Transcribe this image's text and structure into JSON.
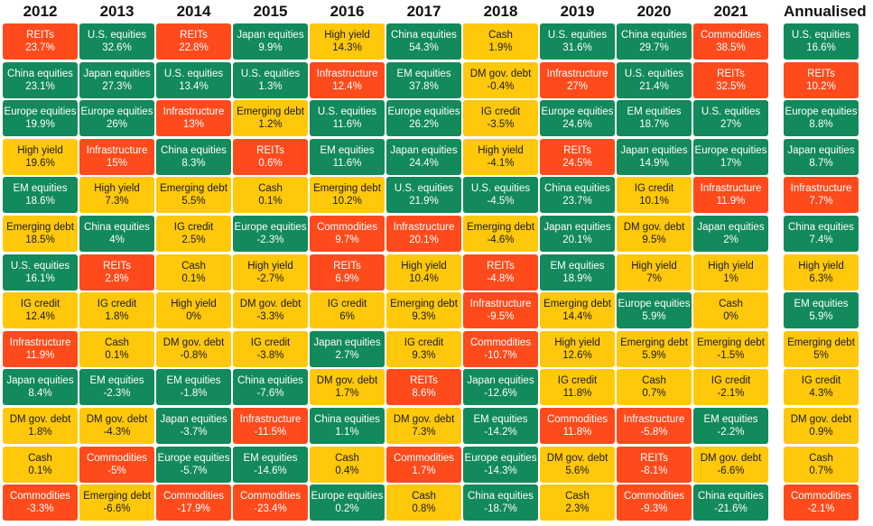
{
  "chart_data": {
    "type": "table",
    "columns": [
      "2012",
      "2013",
      "2014",
      "2015",
      "2016",
      "2017",
      "2018",
      "2019",
      "2020",
      "2021",
      "Annualised"
    ],
    "colors": {
      "green": "#128a5b",
      "yellow": "#ffc80a",
      "red": "#ff4a1c"
    },
    "rows_per_column": 13,
    "cells": [
      [
        {
          "asset": "REITs",
          "value": "23.7%",
          "color": "red"
        },
        {
          "asset": "China equities",
          "value": "23.1%",
          "color": "green"
        },
        {
          "asset": "Europe equities",
          "value": "19.9%",
          "color": "green"
        },
        {
          "asset": "High yield",
          "value": "19.6%",
          "color": "yellow"
        },
        {
          "asset": "EM equities",
          "value": "18.6%",
          "color": "green"
        },
        {
          "asset": "Emerging debt",
          "value": "18.5%",
          "color": "yellow"
        },
        {
          "asset": "U.S. equities",
          "value": "16.1%",
          "color": "green"
        },
        {
          "asset": "IG credit",
          "value": "12.4%",
          "color": "yellow"
        },
        {
          "asset": "Infrastructure",
          "value": "11.9%",
          "color": "red"
        },
        {
          "asset": "Japan equities",
          "value": "8.4%",
          "color": "green"
        },
        {
          "asset": "DM gov. debt",
          "value": "1.8%",
          "color": "yellow"
        },
        {
          "asset": "Cash",
          "value": "0.1%",
          "color": "yellow"
        },
        {
          "asset": "Commodities",
          "value": "-3.3%",
          "color": "red"
        }
      ],
      [
        {
          "asset": "U.S. equities",
          "value": "32.6%",
          "color": "green"
        },
        {
          "asset": "Japan equities",
          "value": "27.3%",
          "color": "green"
        },
        {
          "asset": "Europe equities",
          "value": "26%",
          "color": "green"
        },
        {
          "asset": "Infrastructure",
          "value": "15%",
          "color": "red"
        },
        {
          "asset": "High yield",
          "value": "7.3%",
          "color": "yellow"
        },
        {
          "asset": "China equities",
          "value": "4%",
          "color": "green"
        },
        {
          "asset": "REITs",
          "value": "2.8%",
          "color": "red"
        },
        {
          "asset": "IG credit",
          "value": "1.8%",
          "color": "yellow"
        },
        {
          "asset": "Cash",
          "value": "0.1%",
          "color": "yellow"
        },
        {
          "asset": "EM equities",
          "value": "-2.3%",
          "color": "green"
        },
        {
          "asset": "DM gov. debt",
          "value": "-4.3%",
          "color": "yellow"
        },
        {
          "asset": "Commodities",
          "value": "-5%",
          "color": "red"
        },
        {
          "asset": "Emerging debt",
          "value": "-6.6%",
          "color": "yellow"
        }
      ],
      [
        {
          "asset": "REITs",
          "value": "22.8%",
          "color": "red"
        },
        {
          "asset": "U.S. equities",
          "value": "13.4%",
          "color": "green"
        },
        {
          "asset": "Infrastructure",
          "value": "13%",
          "color": "red"
        },
        {
          "asset": "China equities",
          "value": "8.3%",
          "color": "green"
        },
        {
          "asset": "Emerging debt",
          "value": "5.5%",
          "color": "yellow"
        },
        {
          "asset": "IG credit",
          "value": "2.5%",
          "color": "yellow"
        },
        {
          "asset": "Cash",
          "value": "0.1%",
          "color": "yellow"
        },
        {
          "asset": "High yield",
          "value": "0%",
          "color": "yellow"
        },
        {
          "asset": "DM gov. debt",
          "value": "-0.8%",
          "color": "yellow"
        },
        {
          "asset": "EM equities",
          "value": "-1.8%",
          "color": "green"
        },
        {
          "asset": "Japan equities",
          "value": "-3.7%",
          "color": "green"
        },
        {
          "asset": "Europe equities",
          "value": "-5.7%",
          "color": "green"
        },
        {
          "asset": "Commodities",
          "value": "-17.9%",
          "color": "red"
        }
      ],
      [
        {
          "asset": "Japan equities",
          "value": "9.9%",
          "color": "green"
        },
        {
          "asset": "U.S. equities",
          "value": "1.3%",
          "color": "green"
        },
        {
          "asset": "Emerging debt",
          "value": "1.2%",
          "color": "yellow"
        },
        {
          "asset": "REITs",
          "value": "0.6%",
          "color": "red"
        },
        {
          "asset": "Cash",
          "value": "0.1%",
          "color": "yellow"
        },
        {
          "asset": "Europe equities",
          "value": "-2.3%",
          "color": "green"
        },
        {
          "asset": "High yield",
          "value": "-2.7%",
          "color": "yellow"
        },
        {
          "asset": "DM gov. debt",
          "value": "-3.3%",
          "color": "yellow"
        },
        {
          "asset": "IG credit",
          "value": "-3.8%",
          "color": "yellow"
        },
        {
          "asset": "China equities",
          "value": "-7.6%",
          "color": "green"
        },
        {
          "asset": "Infrastructure",
          "value": "-11.5%",
          "color": "red"
        },
        {
          "asset": "EM equities",
          "value": "-14.6%",
          "color": "green"
        },
        {
          "asset": "Commodities",
          "value": "-23.4%",
          "color": "red"
        }
      ],
      [
        {
          "asset": "High yield",
          "value": "14.3%",
          "color": "yellow"
        },
        {
          "asset": "Infrastructure",
          "value": "12.4%",
          "color": "red"
        },
        {
          "asset": "U.S. equities",
          "value": "11.6%",
          "color": "green"
        },
        {
          "asset": "EM equities",
          "value": "11.6%",
          "color": "green"
        },
        {
          "asset": "Emerging debt",
          "value": "10.2%",
          "color": "yellow"
        },
        {
          "asset": "Commodities",
          "value": "9.7%",
          "color": "red"
        },
        {
          "asset": "REITs",
          "value": "6.9%",
          "color": "red"
        },
        {
          "asset": "IG credit",
          "value": "6%",
          "color": "yellow"
        },
        {
          "asset": "Japan equities",
          "value": "2.7%",
          "color": "green"
        },
        {
          "asset": "DM gov. debt",
          "value": "1.7%",
          "color": "yellow"
        },
        {
          "asset": "China equities",
          "value": "1.1%",
          "color": "green"
        },
        {
          "asset": "Cash",
          "value": "0.4%",
          "color": "yellow"
        },
        {
          "asset": "Europe equities",
          "value": "0.2%",
          "color": "green"
        }
      ],
      [
        {
          "asset": "China equities",
          "value": "54.3%",
          "color": "green"
        },
        {
          "asset": "EM equities",
          "value": "37.8%",
          "color": "green"
        },
        {
          "asset": "Europe equities",
          "value": "26.2%",
          "color": "green"
        },
        {
          "asset": "Japan equities",
          "value": "24.4%",
          "color": "green"
        },
        {
          "asset": "U.S. equities",
          "value": "21.9%",
          "color": "green"
        },
        {
          "asset": "Infrastructure",
          "value": "20.1%",
          "color": "red"
        },
        {
          "asset": "High yield",
          "value": "10.4%",
          "color": "yellow"
        },
        {
          "asset": "Emerging debt",
          "value": "9.3%",
          "color": "yellow"
        },
        {
          "asset": "IG credit",
          "value": "9.3%",
          "color": "yellow"
        },
        {
          "asset": "REITs",
          "value": "8.6%",
          "color": "red"
        },
        {
          "asset": "DM gov. debt",
          "value": "7.3%",
          "color": "yellow"
        },
        {
          "asset": "Commodities",
          "value": "1.7%",
          "color": "red"
        },
        {
          "asset": "Cash",
          "value": "0.8%",
          "color": "yellow"
        }
      ],
      [
        {
          "asset": "Cash",
          "value": "1.9%",
          "color": "yellow"
        },
        {
          "asset": "DM gov. debt",
          "value": "-0.4%",
          "color": "yellow"
        },
        {
          "asset": "IG credit",
          "value": "-3.5%",
          "color": "yellow"
        },
        {
          "asset": "High yield",
          "value": "-4.1%",
          "color": "yellow"
        },
        {
          "asset": "U.S. equities",
          "value": "-4.5%",
          "color": "green"
        },
        {
          "asset": "Emerging debt",
          "value": "-4.6%",
          "color": "yellow"
        },
        {
          "asset": "REITs",
          "value": "-4.8%",
          "color": "red"
        },
        {
          "asset": "Infrastructure",
          "value": "-9.5%",
          "color": "red"
        },
        {
          "asset": "Commodities",
          "value": "-10.7%",
          "color": "red"
        },
        {
          "asset": "Japan equities",
          "value": "-12.6%",
          "color": "green"
        },
        {
          "asset": "EM equities",
          "value": "-14.2%",
          "color": "green"
        },
        {
          "asset": "Europe equities",
          "value": "-14.3%",
          "color": "green"
        },
        {
          "asset": "China equities",
          "value": "-18.7%",
          "color": "green"
        }
      ],
      [
        {
          "asset": "U.S. equities",
          "value": "31.6%",
          "color": "green"
        },
        {
          "asset": "Infrastructure",
          "value": "27%",
          "color": "red"
        },
        {
          "asset": "Europe equities",
          "value": "24.6%",
          "color": "green"
        },
        {
          "asset": "REITs",
          "value": "24.5%",
          "color": "red"
        },
        {
          "asset": "China equities",
          "value": "23.7%",
          "color": "green"
        },
        {
          "asset": "Japan equities",
          "value": "20.1%",
          "color": "green"
        },
        {
          "asset": "EM equities",
          "value": "18.9%",
          "color": "green"
        },
        {
          "asset": "Emerging debt",
          "value": "14.4%",
          "color": "yellow"
        },
        {
          "asset": "High yield",
          "value": "12.6%",
          "color": "yellow"
        },
        {
          "asset": "IG credit",
          "value": "11.8%",
          "color": "yellow"
        },
        {
          "asset": "Commodities",
          "value": "11.8%",
          "color": "red"
        },
        {
          "asset": "DM gov. debt",
          "value": "5.6%",
          "color": "yellow"
        },
        {
          "asset": "Cash",
          "value": "2.3%",
          "color": "yellow"
        }
      ],
      [
        {
          "asset": "China equities",
          "value": "29.7%",
          "color": "green"
        },
        {
          "asset": "U.S. equities",
          "value": "21.4%",
          "color": "green"
        },
        {
          "asset": "EM equities",
          "value": "18.7%",
          "color": "green"
        },
        {
          "asset": "Japan equities",
          "value": "14.9%",
          "color": "green"
        },
        {
          "asset": "IG credit",
          "value": "10.1%",
          "color": "yellow"
        },
        {
          "asset": "DM gov. debt",
          "value": "9.5%",
          "color": "yellow"
        },
        {
          "asset": "High yield",
          "value": "7%",
          "color": "yellow"
        },
        {
          "asset": "Europe equities",
          "value": "5.9%",
          "color": "green"
        },
        {
          "asset": "Emerging debt",
          "value": "5.9%",
          "color": "yellow"
        },
        {
          "asset": "Cash",
          "value": "0.7%",
          "color": "yellow"
        },
        {
          "asset": "Infrastructure",
          "value": "-5.8%",
          "color": "red"
        },
        {
          "asset": "REITs",
          "value": "-8.1%",
          "color": "red"
        },
        {
          "asset": "Commodities",
          "value": "-9.3%",
          "color": "red"
        }
      ],
      [
        {
          "asset": "Commodities",
          "value": "38.5%",
          "color": "red"
        },
        {
          "asset": "REITs",
          "value": "32.5%",
          "color": "red"
        },
        {
          "asset": "U.S. equities",
          "value": "27%",
          "color": "green"
        },
        {
          "asset": "Europe equities",
          "value": "17%",
          "color": "green"
        },
        {
          "asset": "Infrastructure",
          "value": "11.9%",
          "color": "red"
        },
        {
          "asset": "Japan equities",
          "value": "2%",
          "color": "green"
        },
        {
          "asset": "High yield",
          "value": "1%",
          "color": "yellow"
        },
        {
          "asset": "Cash",
          "value": "0%",
          "color": "yellow"
        },
        {
          "asset": "Emerging debt",
          "value": "-1.5%",
          "color": "yellow"
        },
        {
          "asset": "IG credit",
          "value": "-2.1%",
          "color": "yellow"
        },
        {
          "asset": "EM equities",
          "value": "-2.2%",
          "color": "green"
        },
        {
          "asset": "DM gov. debt",
          "value": "-6.6%",
          "color": "yellow"
        },
        {
          "asset": "China equities",
          "value": "-21.6%",
          "color": "green"
        }
      ],
      [
        {
          "asset": "U.S. equities",
          "value": "16.6%",
          "color": "green"
        },
        {
          "asset": "REITs",
          "value": "10.2%",
          "color": "red"
        },
        {
          "asset": "Europe equities",
          "value": "8.8%",
          "color": "green"
        },
        {
          "asset": "Japan equities",
          "value": "8.7%",
          "color": "green"
        },
        {
          "asset": "Infrastructure",
          "value": "7.7%",
          "color": "red"
        },
        {
          "asset": "China equities",
          "value": "7.4%",
          "color": "green"
        },
        {
          "asset": "High yield",
          "value": "6.3%",
          "color": "yellow"
        },
        {
          "asset": "EM equities",
          "value": "5.9%",
          "color": "green"
        },
        {
          "asset": "Emerging debt",
          "value": "5%",
          "color": "yellow"
        },
        {
          "asset": "IG credit",
          "value": "4.3%",
          "color": "yellow"
        },
        {
          "asset": "DM gov. debt",
          "value": "0.9%",
          "color": "yellow"
        },
        {
          "asset": "Cash",
          "value": "0.7%",
          "color": "yellow"
        },
        {
          "asset": "Commodities",
          "value": "-2.1%",
          "color": "red"
        }
      ]
    ]
  }
}
